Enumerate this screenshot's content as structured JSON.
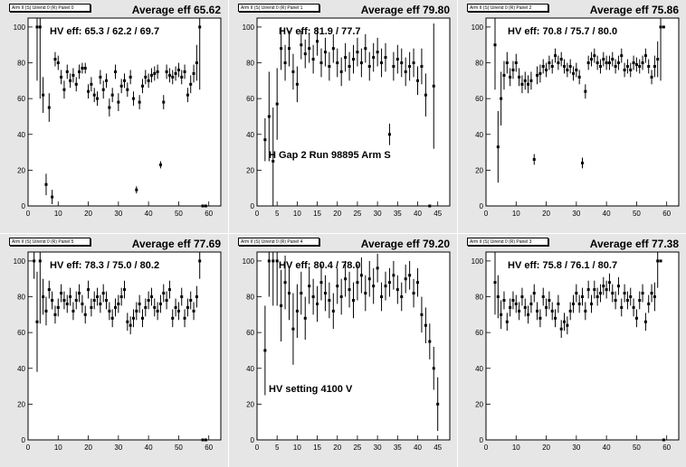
{
  "panels": [
    {
      "id": "p0",
      "title": "Arm II (S) Uirend 0 (R) Panel 0",
      "average_label": "Average eff 65.62",
      "hv_label": "HV eff:   65.3 / 62.2 / 69.7",
      "note": "",
      "chart_data": {
        "type": "scatter",
        "xlim": [
          0,
          64
        ],
        "ylim": [
          0,
          105
        ],
        "xticks": [
          0,
          10,
          20,
          30,
          40,
          50,
          60
        ],
        "yticks": [
          0,
          20,
          40,
          60,
          80,
          100
        ],
        "x": [
          3,
          4,
          5,
          6,
          7,
          8,
          9,
          10,
          11,
          12,
          13,
          14,
          15,
          16,
          17,
          18,
          19,
          20,
          21,
          22,
          23,
          24,
          25,
          26,
          27,
          28,
          29,
          30,
          31,
          32,
          33,
          34,
          35,
          36,
          37,
          38,
          39,
          40,
          41,
          42,
          43,
          44,
          45,
          46,
          47,
          48,
          49,
          50,
          51,
          52,
          53,
          54,
          55,
          56,
          57,
          58,
          59
        ],
        "y": [
          100,
          100,
          62,
          12,
          55,
          5,
          82,
          80,
          72,
          65,
          75,
          70,
          73,
          68,
          75,
          77,
          77,
          64,
          68,
          62,
          60,
          72,
          65,
          70,
          55,
          62,
          75,
          58,
          67,
          70,
          65,
          72,
          60,
          9,
          58,
          67,
          72,
          70,
          73,
          74,
          75,
          23,
          58,
          75,
          73,
          72,
          74,
          76,
          72,
          75,
          62,
          68,
          74,
          80,
          100,
          0,
          0
        ],
        "err": [
          30,
          40,
          10,
          6,
          8,
          4,
          4,
          4,
          4,
          5,
          4,
          4,
          4,
          4,
          4,
          3,
          3,
          4,
          4,
          4,
          4,
          4,
          5,
          4,
          5,
          4,
          4,
          5,
          4,
          4,
          4,
          4,
          4,
          2,
          4,
          4,
          4,
          4,
          4,
          4,
          4,
          2,
          4,
          4,
          4,
          4,
          4,
          4,
          4,
          4,
          4,
          5,
          5,
          10,
          35,
          0,
          0
        ]
      }
    },
    {
      "id": "p1",
      "title": "Arm II (S) Uirend 0 (R) Panel 1",
      "average_label": "Average eff 79.80",
      "hv_label": "HV eff:   81.9 / 77.7",
      "note": "H Gap 2 Run 98895 Arm S",
      "chart_data": {
        "type": "scatter",
        "xlim": [
          0,
          48
        ],
        "ylim": [
          0,
          105
        ],
        "xticks": [
          0,
          5,
          10,
          15,
          20,
          25,
          30,
          35,
          40,
          45
        ],
        "yticks": [
          0,
          20,
          40,
          60,
          80,
          100
        ],
        "x": [
          2,
          3,
          4,
          5,
          6,
          7,
          8,
          9,
          10,
          11,
          12,
          13,
          14,
          15,
          16,
          17,
          18,
          19,
          20,
          21,
          22,
          23,
          24,
          25,
          26,
          27,
          28,
          29,
          30,
          31,
          32,
          33,
          34,
          35,
          36,
          37,
          38,
          39,
          40,
          41,
          42,
          43,
          44
        ],
        "y": [
          37,
          50,
          25,
          57,
          88,
          80,
          88,
          75,
          68,
          90,
          85,
          88,
          82,
          92,
          80,
          86,
          78,
          88,
          80,
          75,
          83,
          78,
          82,
          86,
          80,
          88,
          78,
          83,
          86,
          80,
          83,
          40,
          78,
          82,
          80,
          75,
          78,
          80,
          70,
          78,
          62,
          0,
          67
        ],
        "err": [
          12,
          25,
          30,
          20,
          12,
          10,
          10,
          10,
          10,
          8,
          8,
          8,
          8,
          8,
          8,
          8,
          8,
          8,
          8,
          8,
          8,
          8,
          8,
          8,
          8,
          8,
          8,
          8,
          8,
          8,
          8,
          6,
          8,
          8,
          8,
          8,
          8,
          8,
          8,
          10,
          12,
          0,
          35
        ]
      }
    },
    {
      "id": "p2",
      "title": "Arm II (S) Uirend 0 (R) Panel 2",
      "average_label": "Average eff 75.86",
      "hv_label": "HV eff:   70.8 / 75.7 / 80.0",
      "note": "",
      "chart_data": {
        "type": "scatter",
        "xlim": [
          0,
          64
        ],
        "ylim": [
          0,
          105
        ],
        "xticks": [
          0,
          10,
          20,
          30,
          40,
          50,
          60
        ],
        "yticks": [
          0,
          20,
          40,
          60,
          80,
          100
        ],
        "x": [
          3,
          4,
          5,
          6,
          7,
          8,
          9,
          10,
          11,
          12,
          13,
          14,
          15,
          16,
          17,
          18,
          19,
          20,
          21,
          22,
          23,
          24,
          25,
          26,
          27,
          28,
          29,
          30,
          31,
          32,
          33,
          34,
          35,
          36,
          37,
          38,
          39,
          40,
          41,
          42,
          43,
          44,
          45,
          46,
          47,
          48,
          49,
          50,
          51,
          52,
          53,
          54,
          55,
          56,
          57,
          58,
          59
        ],
        "y": [
          90,
          33,
          60,
          73,
          80,
          72,
          76,
          80,
          72,
          68,
          70,
          68,
          70,
          26,
          73,
          74,
          78,
          76,
          80,
          78,
          84,
          80,
          82,
          78,
          76,
          78,
          74,
          76,
          72,
          24,
          64,
          80,
          82,
          84,
          80,
          78,
          82,
          80,
          80,
          82,
          78,
          80,
          84,
          76,
          78,
          76,
          80,
          79,
          78,
          80,
          84,
          78,
          72,
          78,
          82,
          100,
          100
        ],
        "err": [
          25,
          20,
          15,
          8,
          6,
          5,
          5,
          5,
          5,
          5,
          5,
          5,
          5,
          3,
          5,
          5,
          4,
          4,
          4,
          4,
          4,
          4,
          4,
          4,
          4,
          4,
          4,
          4,
          4,
          3,
          4,
          4,
          4,
          4,
          4,
          4,
          4,
          4,
          4,
          4,
          4,
          4,
          4,
          4,
          4,
          4,
          4,
          4,
          4,
          4,
          4,
          4,
          4,
          6,
          10,
          30,
          0
        ]
      }
    },
    {
      "id": "p3",
      "title": "Arm II (S) Uirend 0 (R) Panel 5",
      "average_label": "Average eff 77.69",
      "hv_label": "HV eff:   78.3 / 75.0 / 80.2",
      "note": "",
      "chart_data": {
        "type": "scatter",
        "xlim": [
          0,
          64
        ],
        "ylim": [
          0,
          105
        ],
        "xticks": [
          0,
          10,
          20,
          30,
          40,
          50,
          60
        ],
        "yticks": [
          0,
          20,
          40,
          60,
          80,
          100
        ],
        "x": [
          2,
          3,
          4,
          5,
          6,
          7,
          8,
          9,
          10,
          11,
          12,
          13,
          14,
          15,
          16,
          17,
          18,
          19,
          20,
          21,
          22,
          23,
          24,
          25,
          26,
          27,
          28,
          29,
          30,
          31,
          32,
          33,
          34,
          35,
          36,
          37,
          38,
          39,
          40,
          41,
          42,
          43,
          44,
          45,
          46,
          47,
          48,
          49,
          50,
          51,
          52,
          53,
          54,
          55,
          56,
          57,
          58,
          59
        ],
        "y": [
          100,
          66,
          100,
          80,
          72,
          84,
          78,
          70,
          74,
          82,
          78,
          76,
          80,
          72,
          78,
          82,
          76,
          70,
          84,
          74,
          78,
          80,
          76,
          82,
          78,
          72,
          68,
          74,
          76,
          80,
          84,
          66,
          64,
          68,
          72,
          76,
          68,
          74,
          78,
          80,
          74,
          72,
          76,
          82,
          78,
          84,
          68,
          74,
          72,
          80,
          68,
          74,
          78,
          72,
          80,
          100,
          0,
          0
        ],
        "err": [
          10,
          28,
          35,
          10,
          8,
          5,
          5,
          5,
          5,
          5,
          5,
          5,
          5,
          5,
          5,
          5,
          5,
          5,
          5,
          5,
          5,
          5,
          5,
          5,
          5,
          5,
          5,
          5,
          5,
          5,
          5,
          5,
          5,
          5,
          5,
          5,
          5,
          5,
          5,
          5,
          5,
          5,
          5,
          5,
          5,
          5,
          5,
          5,
          5,
          5,
          5,
          5,
          5,
          5,
          6,
          10,
          0,
          0
        ]
      }
    },
    {
      "id": "p4",
      "title": "Arm II (S) Uirend 0 (R) Panel 4",
      "average_label": "Average eff 79.20",
      "hv_label": "HV eff:   80.4 / 78.0",
      "note": "HV setting 4100 V",
      "chart_data": {
        "type": "scatter",
        "xlim": [
          0,
          48
        ],
        "ylim": [
          0,
          105
        ],
        "xticks": [
          0,
          5,
          10,
          15,
          20,
          25,
          30,
          35,
          40,
          45
        ],
        "yticks": [
          0,
          20,
          40,
          60,
          80,
          100
        ],
        "x": [
          2,
          3,
          4,
          5,
          6,
          7,
          8,
          9,
          10,
          11,
          12,
          13,
          14,
          15,
          16,
          17,
          18,
          19,
          20,
          21,
          22,
          23,
          24,
          25,
          26,
          27,
          28,
          29,
          30,
          31,
          32,
          33,
          34,
          35,
          36,
          37,
          38,
          39,
          40,
          41,
          42,
          43,
          44,
          45
        ],
        "y": [
          50,
          100,
          100,
          100,
          75,
          88,
          82,
          62,
          72,
          82,
          68,
          86,
          80,
          76,
          88,
          82,
          78,
          72,
          86,
          80,
          90,
          84,
          78,
          88,
          92,
          82,
          90,
          86,
          96,
          80,
          86,
          88,
          92,
          84,
          80,
          90,
          92,
          82,
          88,
          70,
          64,
          55,
          40,
          20
        ],
        "err": [
          25,
          20,
          25,
          25,
          20,
          15,
          15,
          20,
          15,
          12,
          12,
          10,
          10,
          10,
          10,
          10,
          10,
          10,
          10,
          10,
          10,
          10,
          10,
          10,
          10,
          10,
          10,
          10,
          8,
          8,
          8,
          8,
          8,
          8,
          8,
          8,
          8,
          8,
          8,
          10,
          10,
          10,
          12,
          15
        ]
      }
    },
    {
      "id": "p5",
      "title": "Arm II (S) Uirend 0 (R) Panel 3",
      "average_label": "Average eff 77.38",
      "hv_label": "HV eff:   75.8 / 76.1 / 80.7",
      "note": "",
      "chart_data": {
        "type": "scatter",
        "xlim": [
          0,
          64
        ],
        "ylim": [
          0,
          105
        ],
        "xticks": [
          0,
          10,
          20,
          30,
          40,
          50,
          60
        ],
        "yticks": [
          0,
          20,
          40,
          60,
          80,
          100
        ],
        "x": [
          3,
          4,
          5,
          6,
          7,
          8,
          9,
          10,
          11,
          12,
          13,
          14,
          15,
          16,
          17,
          18,
          19,
          20,
          21,
          22,
          23,
          24,
          25,
          26,
          27,
          28,
          29,
          30,
          31,
          32,
          33,
          34,
          35,
          36,
          37,
          38,
          39,
          40,
          41,
          42,
          43,
          44,
          45,
          46,
          47,
          48,
          49,
          50,
          51,
          52,
          53,
          54,
          55,
          56,
          57,
          58,
          59
        ],
        "y": [
          88,
          80,
          70,
          78,
          66,
          74,
          78,
          76,
          72,
          80,
          74,
          70,
          76,
          82,
          72,
          68,
          80,
          74,
          78,
          72,
          68,
          76,
          62,
          66,
          64,
          72,
          76,
          82,
          76,
          80,
          72,
          84,
          76,
          84,
          80,
          82,
          86,
          84,
          88,
          82,
          78,
          86,
          74,
          82,
          78,
          80,
          74,
          68,
          78,
          82,
          66,
          76,
          82,
          80,
          100,
          100,
          0
        ],
        "err": [
          18,
          12,
          8,
          5,
          5,
          5,
          5,
          5,
          5,
          5,
          5,
          5,
          5,
          5,
          5,
          5,
          5,
          5,
          5,
          5,
          5,
          5,
          5,
          5,
          5,
          5,
          5,
          5,
          5,
          5,
          5,
          5,
          5,
          5,
          5,
          5,
          5,
          5,
          5,
          5,
          5,
          5,
          5,
          5,
          5,
          5,
          5,
          5,
          5,
          5,
          5,
          5,
          5,
          8,
          15,
          0,
          0
        ]
      }
    }
  ]
}
